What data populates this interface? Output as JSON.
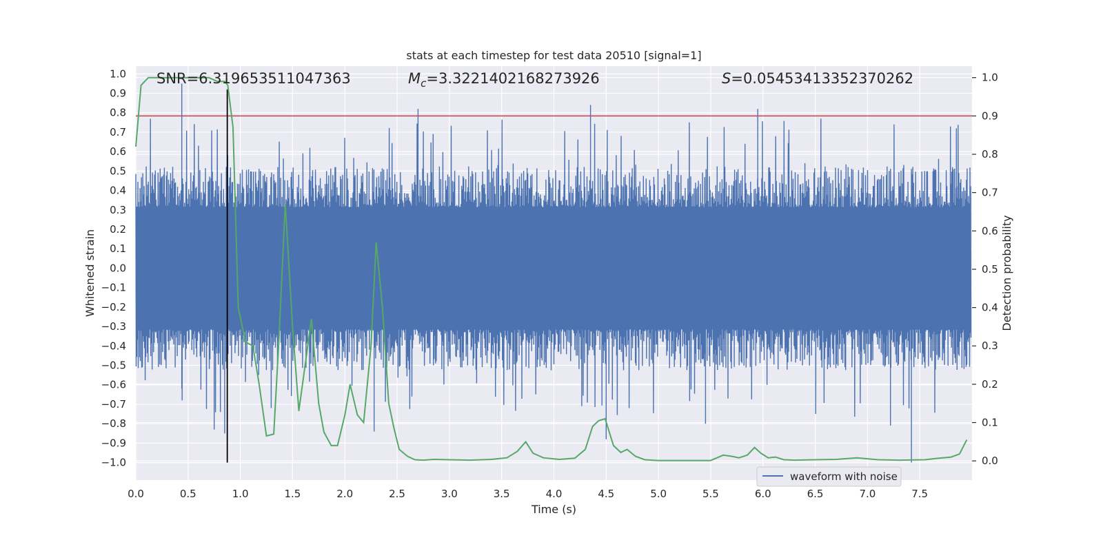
{
  "chart_data": {
    "type": "line",
    "title": "stats at each timestep for test data 20510 [signal=1]",
    "xlabel": "Time (s)",
    "ylabel_left": "Whitened strain",
    "ylabel_right": "Detection probability",
    "xlim": [
      0.0,
      8.0
    ],
    "ylim_left": [
      -1.09,
      1.04
    ],
    "ylim_right": [
      -0.05,
      1.03
    ],
    "x_ticks": [
      0.0,
      0.5,
      1.0,
      1.5,
      2.0,
      2.5,
      3.0,
      3.5,
      4.0,
      4.5,
      5.0,
      5.5,
      6.0,
      6.5,
      7.0,
      7.5
    ],
    "x_tick_labels": [
      "0.0",
      "0.5",
      "1.0",
      "1.5",
      "2.0",
      "2.5",
      "3.0",
      "3.5",
      "4.0",
      "4.5",
      "5.0",
      "5.5",
      "6.0",
      "6.5",
      "7.0",
      "7.5"
    ],
    "y_left_ticks": [
      -1.0,
      -0.9,
      -0.8,
      -0.7,
      -0.6,
      -0.5,
      -0.4,
      -0.3,
      -0.2,
      -0.1,
      0.0,
      0.1,
      0.2,
      0.3,
      0.4,
      0.5,
      0.6,
      0.7,
      0.8,
      0.9,
      1.0
    ],
    "y_left_tick_labels": [
      "−1.0",
      "−0.9",
      "−0.8",
      "−0.7",
      "−0.6",
      "−0.5",
      "−0.4",
      "−0.3",
      "−0.2",
      "−0.1",
      "0.0",
      "0.1",
      "0.2",
      "0.3",
      "0.4",
      "0.5",
      "0.6",
      "0.7",
      "0.8",
      "0.9",
      "1.0"
    ],
    "y_right_ticks": [
      0.0,
      0.1,
      0.2,
      0.3,
      0.4,
      0.5,
      0.6,
      0.7,
      0.8,
      0.9,
      1.0
    ],
    "y_right_tick_labels": [
      "0.0",
      "0.1",
      "0.2",
      "0.3",
      "0.4",
      "0.5",
      "0.6",
      "0.7",
      "0.8",
      "0.9",
      "1.0"
    ],
    "annotations": {
      "snr": "SNR=6.319653511047363",
      "mc_symbol": "M",
      "mc_sub": "c",
      "mc_value": "=3.3221402168273926",
      "s_symbol": "S",
      "s_value": "=0.05453413352370262"
    },
    "waveform": {
      "name": "waveform with noise",
      "color": "#4c72b0",
      "t_start": 0.0,
      "t_end": 7.99,
      "samples": 2400,
      "typical_amplitude": 0.42,
      "peak_spikes": [
        {
          "x": 0.44,
          "y": 0.95
        },
        {
          "x": 0.44,
          "y": -0.62
        },
        {
          "x": 0.85,
          "y": -0.85
        },
        {
          "x": 0.75,
          "y": -0.83
        },
        {
          "x": 2.28,
          "y": -0.84
        },
        {
          "x": 2.7,
          "y": 0.82
        },
        {
          "x": 4.35,
          "y": 0.84
        },
        {
          "x": 4.5,
          "y": -0.88
        },
        {
          "x": 5.45,
          "y": -0.8
        },
        {
          "x": 5.95,
          "y": 0.82
        },
        {
          "x": 7.22,
          "y": -0.81
        },
        {
          "x": 7.42,
          "y": -1.0
        },
        {
          "x": 7.85,
          "y": 0.72
        }
      ]
    },
    "probability": {
      "color": "#55a868",
      "x": [
        0.0,
        0.05,
        0.12,
        0.2,
        0.3,
        0.4,
        0.5,
        0.6,
        0.7,
        0.78,
        0.85,
        0.88,
        0.93,
        0.98,
        1.05,
        1.12,
        1.18,
        1.25,
        1.32,
        1.37,
        1.43,
        1.5,
        1.56,
        1.62,
        1.68,
        1.75,
        1.8,
        1.87,
        1.93,
        2.0,
        2.05,
        2.12,
        2.18,
        2.25,
        2.3,
        2.36,
        2.42,
        2.47,
        2.52,
        2.6,
        2.67,
        2.75,
        2.85,
        3.0,
        3.2,
        3.4,
        3.55,
        3.65,
        3.73,
        3.8,
        3.9,
        4.05,
        4.2,
        4.3,
        4.37,
        4.43,
        4.49,
        4.57,
        4.64,
        4.7,
        4.78,
        4.87,
        5.0,
        5.25,
        5.5,
        5.62,
        5.7,
        5.77,
        5.85,
        5.92,
        5.98,
        6.05,
        6.12,
        6.2,
        6.3,
        6.5,
        6.7,
        6.9,
        7.1,
        7.3,
        7.55,
        7.65,
        7.8,
        7.88,
        7.95
      ],
      "y": [
        0.82,
        0.98,
        1.0,
        1.0,
        1.0,
        1.0,
        1.0,
        1.0,
        1.0,
        0.99,
        0.99,
        0.98,
        0.87,
        0.4,
        0.31,
        0.3,
        0.2,
        0.065,
        0.07,
        0.32,
        0.67,
        0.35,
        0.13,
        0.25,
        0.37,
        0.15,
        0.075,
        0.04,
        0.04,
        0.12,
        0.2,
        0.12,
        0.1,
        0.3,
        0.57,
        0.4,
        0.15,
        0.085,
        0.03,
        0.012,
        0.003,
        0.002,
        0.004,
        0.003,
        0.002,
        0.004,
        0.008,
        0.025,
        0.05,
        0.02,
        0.008,
        0.004,
        0.007,
        0.03,
        0.09,
        0.105,
        0.11,
        0.04,
        0.022,
        0.03,
        0.012,
        0.003,
        0.001,
        0.001,
        0.001,
        0.015,
        0.012,
        0.008,
        0.015,
        0.035,
        0.02,
        0.008,
        0.01,
        0.003,
        0.002,
        0.003,
        0.004,
        0.008,
        0.003,
        0.002,
        0.003,
        0.006,
        0.01,
        0.018,
        0.055
      ]
    },
    "threshold_line": {
      "value": 0.9,
      "axis": "right",
      "color": "#c44e52"
    },
    "event_marker": {
      "x": 0.875,
      "y_from": -1.0,
      "y_to": 0.92,
      "color": "#000000"
    },
    "legend": {
      "entries": [
        "waveform with noise"
      ],
      "loc": "lower right"
    },
    "grid": true
  }
}
